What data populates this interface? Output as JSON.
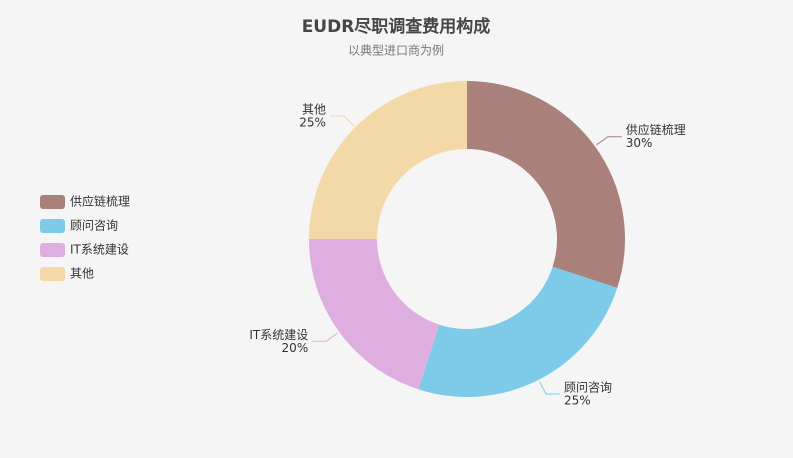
{
  "chart_data": {
    "type": "pie",
    "title": "EUDR尽职调查费用构成",
    "subtitle": "以典型进口商为例",
    "categories": [
      "供应链梳理",
      "顾问咨询",
      "IT系统建设",
      "其他"
    ],
    "values": [
      30,
      25,
      20,
      25
    ],
    "value_labels": [
      "30%",
      "25%",
      "20%",
      "25%"
    ],
    "colors": [
      "#a9807a",
      "#7ecbe9",
      "#dfaee0",
      "#f3d9a8"
    ],
    "legend": "left"
  }
}
